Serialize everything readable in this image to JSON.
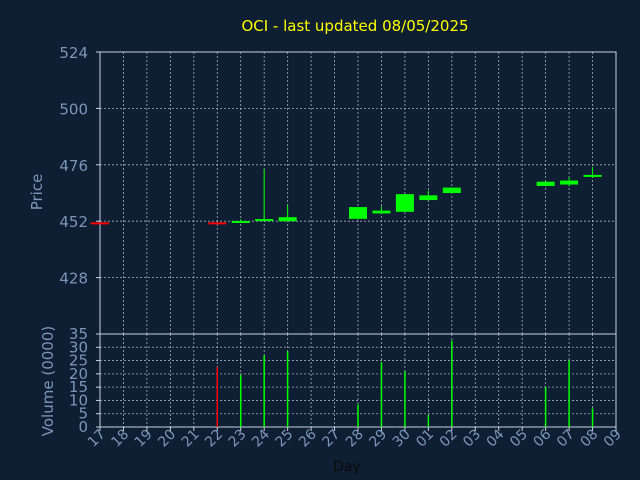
{
  "title": "OCI - last updated 08/05/2025",
  "colors": {
    "background": "#0f1f33",
    "title": "#ffff00",
    "axis_text": "#7b96b8",
    "axis_line": "#c7d2e0",
    "grid": "#c7d2e0",
    "up": "#00ff00",
    "down": "#ff0000"
  },
  "chart_data": [
    {
      "type": "candlestick",
      "ylabel": "Price",
      "ylim": [
        404,
        524
      ],
      "yticks": [
        428,
        452,
        476,
        500,
        524
      ],
      "grid": true,
      "x_categories": [
        "17",
        "18",
        "19",
        "20",
        "21",
        "22",
        "23",
        "24",
        "25",
        "26",
        "27",
        "28",
        "29",
        "30",
        "01",
        "02",
        "03",
        "04",
        "05",
        "06",
        "07",
        "08",
        "09"
      ],
      "candles": [
        {
          "x": "17",
          "open": 451.5,
          "close": 451.5,
          "high": 451.5,
          "low": 451.5,
          "direction": "down"
        },
        {
          "x": "22",
          "open": 451.5,
          "close": 451.5,
          "high": 451.5,
          "low": 451.5,
          "direction": "down"
        },
        {
          "x": "23",
          "open": 451.7,
          "close": 452.1,
          "high": 452.8,
          "low": 451.4,
          "direction": "up"
        },
        {
          "x": "24",
          "open": 452.2,
          "close": 452.9,
          "high": 474.0,
          "low": 452.0,
          "direction": "up"
        },
        {
          "x": "25",
          "open": 452.0,
          "close": 453.7,
          "high": 459.0,
          "low": 451.8,
          "direction": "up"
        },
        {
          "x": "28",
          "open": 453.0,
          "close": 458.0,
          "high": 458.0,
          "low": 452.8,
          "direction": "up"
        },
        {
          "x": "29",
          "open": 455.3,
          "close": 456.5,
          "high": 458.3,
          "low": 455.0,
          "direction": "up"
        },
        {
          "x": "30",
          "open": 456.0,
          "close": 463.5,
          "high": 463.5,
          "low": 456.0,
          "direction": "up"
        },
        {
          "x": "01",
          "open": 461.0,
          "close": 463.0,
          "high": 465.0,
          "low": 460.8,
          "direction": "up"
        },
        {
          "x": "02",
          "open": 464.0,
          "close": 466.3,
          "high": 466.3,
          "low": 464.0,
          "direction": "up"
        },
        {
          "x": "06",
          "open": 467.0,
          "close": 468.8,
          "high": 469.2,
          "low": 466.8,
          "direction": "up"
        },
        {
          "x": "07",
          "open": 467.6,
          "close": 469.3,
          "high": 470.7,
          "low": 466.8,
          "direction": "up"
        },
        {
          "x": "08",
          "open": 471.0,
          "close": 471.7,
          "high": 475.0,
          "low": 470.4,
          "direction": "up"
        }
      ]
    },
    {
      "type": "bar",
      "xlabel": "Day",
      "ylabel": "Volume (0000)",
      "ylim": [
        0,
        35
      ],
      "yticks": [
        0,
        5,
        10,
        15,
        20,
        25,
        30,
        35
      ],
      "grid": true,
      "bars": [
        {
          "x": "22",
          "value": 22.5,
          "direction": "down"
        },
        {
          "x": "23",
          "value": 19.5,
          "direction": "up"
        },
        {
          "x": "24",
          "value": 27,
          "direction": "up"
        },
        {
          "x": "25",
          "value": 28.5,
          "direction": "up"
        },
        {
          "x": "28",
          "value": 8.5,
          "direction": "up"
        },
        {
          "x": "29",
          "value": 24.5,
          "direction": "up"
        },
        {
          "x": "30",
          "value": 21,
          "direction": "up"
        },
        {
          "x": "01",
          "value": 4.5,
          "direction": "up"
        },
        {
          "x": "02",
          "value": 32.5,
          "direction": "up"
        },
        {
          "x": "06",
          "value": 15,
          "direction": "up"
        },
        {
          "x": "07",
          "value": 25,
          "direction": "up"
        },
        {
          "x": "08",
          "value": 7,
          "direction": "up"
        }
      ]
    }
  ]
}
